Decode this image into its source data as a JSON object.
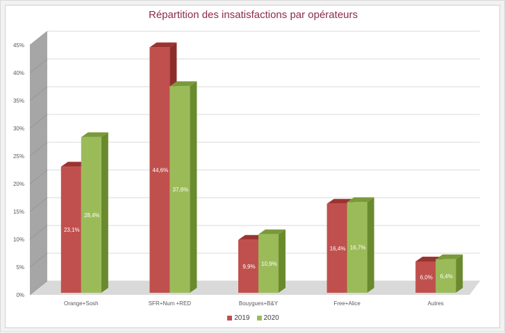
{
  "chart_data": {
    "type": "bar",
    "title": "Répartition des insatisfactions par opérateurs",
    "categories": [
      "Orange+Sosh",
      "SFR+Num +RED",
      "Bouygues+B&Y",
      "Free+Alice",
      "Autres"
    ],
    "series": [
      {
        "name": "2019",
        "values": [
          23.1,
          44.6,
          9.9,
          16.4,
          6.0
        ],
        "labels": [
          "23,1%",
          "44,6%",
          "9,9%",
          "16,4%",
          "6,0%"
        ],
        "color": "#c0504d",
        "top_color": "#9b3431",
        "side_color": "#8c2d2a"
      },
      {
        "name": "2020",
        "values": [
          28.4,
          37.6,
          10.9,
          16.7,
          6.4
        ],
        "labels": [
          "28,4%",
          "37,6%",
          "10,9%",
          "16,7%",
          "6,4%"
        ],
        "color": "#9bbb59",
        "top_color": "#7a9a3a",
        "side_color": "#6a8a2e"
      }
    ],
    "yticks": [
      "0%",
      "5%",
      "10%",
      "15%",
      "20%",
      "25%",
      "30%",
      "35%",
      "40%",
      "45%"
    ],
    "ylim": [
      0,
      45
    ],
    "grid": true,
    "legend": "bottom",
    "xlabel": "",
    "ylabel": ""
  }
}
